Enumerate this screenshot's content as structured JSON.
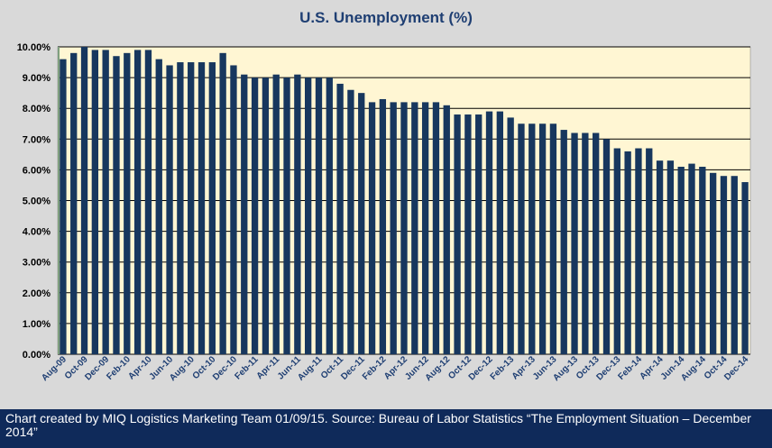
{
  "chart_data": {
    "type": "bar",
    "title": "U.S. Unemployment (%)",
    "xlabel": "",
    "ylabel": "",
    "ylim": [
      0,
      10
    ],
    "y_ticks": [
      "0.00%",
      "1.00%",
      "2.00%",
      "3.00%",
      "4.00%",
      "5.00%",
      "6.00%",
      "7.00%",
      "8.00%",
      "9.00%",
      "10.00%"
    ],
    "grid": "horizontal",
    "colors": {
      "bar": "#17375e",
      "plot_bg": "#fff6d3",
      "grid": "#000000",
      "outer_bg": "#d9d9d9",
      "title": "#1f3f73"
    },
    "categories": [
      "Aug-09",
      "Sep-09",
      "Oct-09",
      "Nov-09",
      "Dec-09",
      "Jan-10",
      "Feb-10",
      "Mar-10",
      "Apr-10",
      "May-10",
      "Jun-10",
      "Jul-10",
      "Aug-10",
      "Sep-10",
      "Oct-10",
      "Nov-10",
      "Dec-10",
      "Jan-11",
      "Feb-11",
      "Mar-11",
      "Apr-11",
      "May-11",
      "Jun-11",
      "Jul-11",
      "Aug-11",
      "Sep-11",
      "Oct-11",
      "Nov-11",
      "Dec-11",
      "Jan-12",
      "Feb-12",
      "Mar-12",
      "Apr-12",
      "May-12",
      "Jun-12",
      "Jul-12",
      "Aug-12",
      "Sep-12",
      "Oct-12",
      "Nov-12",
      "Dec-12",
      "Jan-13",
      "Feb-13",
      "Mar-13",
      "Apr-13",
      "May-13",
      "Jun-13",
      "Jul-13",
      "Aug-13",
      "Sep-13",
      "Oct-13",
      "Nov-13",
      "Dec-13",
      "Jan-14",
      "Feb-14",
      "Mar-14",
      "Apr-14",
      "May-14",
      "Jun-14",
      "Jul-14",
      "Aug-14",
      "Sep-14",
      "Oct-14",
      "Nov-14",
      "Dec-14"
    ],
    "values": [
      9.6,
      9.8,
      10.0,
      9.9,
      9.9,
      9.7,
      9.8,
      9.9,
      9.9,
      9.6,
      9.4,
      9.5,
      9.5,
      9.5,
      9.5,
      9.8,
      9.4,
      9.1,
      9.0,
      9.0,
      9.1,
      9.0,
      9.1,
      9.0,
      9.0,
      9.0,
      8.8,
      8.6,
      8.5,
      8.2,
      8.3,
      8.2,
      8.2,
      8.2,
      8.2,
      8.2,
      8.1,
      7.8,
      7.8,
      7.8,
      7.9,
      7.9,
      7.7,
      7.5,
      7.5,
      7.5,
      7.5,
      7.3,
      7.2,
      7.2,
      7.2,
      7.0,
      6.7,
      6.6,
      6.7,
      6.7,
      6.3,
      6.3,
      6.1,
      6.2,
      6.1,
      5.9,
      5.8,
      5.8,
      5.6
    ],
    "labeled_categories_every": 2
  },
  "footer": {
    "source_note": "Chart created by MIQ Logistics Marketing Team 01/09/15. Source: Bureau of Labor Statistics “The Employment Situation – December 2014”"
  }
}
